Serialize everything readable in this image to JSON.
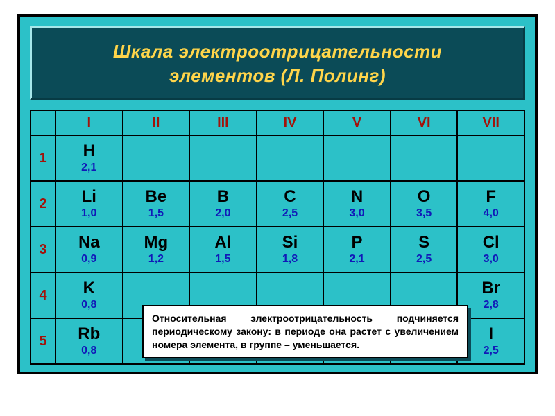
{
  "title": {
    "line1": "Шкала электроотрицательности",
    "line2": "элементов (Л. Полинг)"
  },
  "table": {
    "type": "table",
    "background_color": "#2cc1c8",
    "border_color": "#000000",
    "header_text_color": "#a3120a",
    "symbol_color": "#000000",
    "value_color": "#1119b8",
    "header_fontsize": 20,
    "symbol_fontsize": 24,
    "value_fontsize": 16,
    "columns": [
      "I",
      "II",
      "III",
      "IV",
      "V",
      "VI",
      "VII"
    ],
    "row_labels": [
      "1",
      "2",
      "3",
      "4",
      "5"
    ],
    "cells": [
      [
        {
          "sym": "H",
          "val": "2,1"
        },
        null,
        null,
        null,
        null,
        null,
        null
      ],
      [
        {
          "sym": "Li",
          "val": "1,0"
        },
        {
          "sym": "Be",
          "val": "1,5"
        },
        {
          "sym": "B",
          "val": "2,0"
        },
        {
          "sym": "C",
          "val": "2,5"
        },
        {
          "sym": "N",
          "val": "3,0"
        },
        {
          "sym": "O",
          "val": "3,5"
        },
        {
          "sym": "F",
          "val": "4,0"
        }
      ],
      [
        {
          "sym": "Na",
          "val": "0,9"
        },
        {
          "sym": "Mg",
          "val": "1,2"
        },
        {
          "sym": "Al",
          "val": "1,5"
        },
        {
          "sym": "Si",
          "val": "1,8"
        },
        {
          "sym": "P",
          "val": "2,1"
        },
        {
          "sym": "S",
          "val": "2,5"
        },
        {
          "sym": "Cl",
          "val": "3,0"
        }
      ],
      [
        {
          "sym": "K",
          "val": "0,8"
        },
        null,
        null,
        null,
        null,
        null,
        {
          "sym": "Br",
          "val": "2,8"
        }
      ],
      [
        {
          "sym": "Rb",
          "val": "0,8"
        },
        null,
        null,
        null,
        null,
        null,
        {
          "sym": "I",
          "val": "2,5"
        }
      ]
    ]
  },
  "note": {
    "text": "Относительная электроотрицательность подчиняется периодическому закону: в периоде она растет с увеличением номера элемента, в группе – уменьшается.",
    "background_color": "#ffffff",
    "border_color": "#000000",
    "shadow_color": "#0b4b57",
    "fontsize": 14
  },
  "title_panel": {
    "background_color": "#0b4b57",
    "text_color": "#ffd54a",
    "fontsize": 26,
    "font_style": "bold italic"
  },
  "frame": {
    "background_color": "#2cc1c8",
    "border_color": "#000000"
  }
}
